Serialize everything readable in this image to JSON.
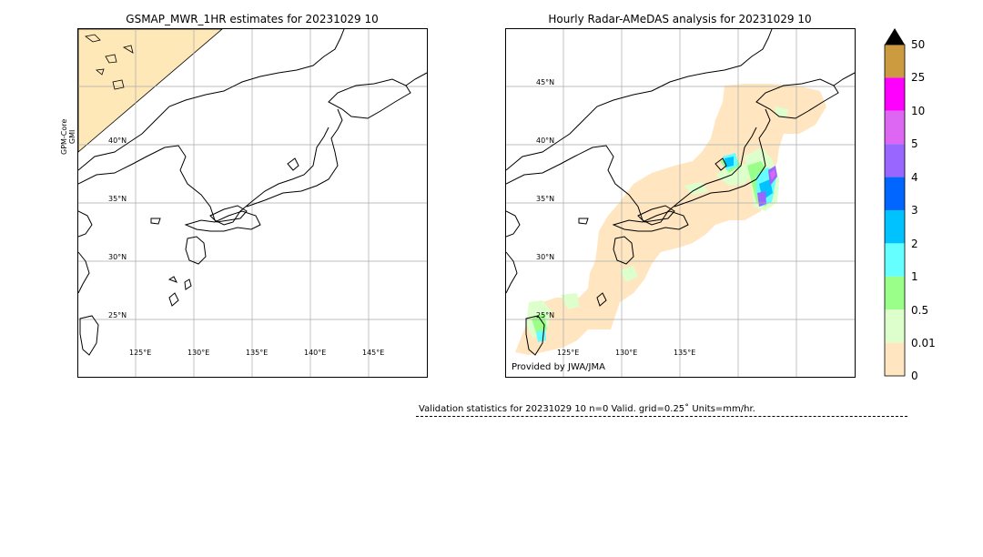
{
  "left_panel": {
    "title": "GSMAP_MWR_1HR estimates for 20231029 10",
    "satellite_label_line1": "GPM-Core",
    "satellite_label_line2": "GMI",
    "lat_labels": [
      "40°N",
      "35°N",
      "30°N",
      "25°N"
    ],
    "lon_labels": [
      "125°E",
      "130°E",
      "135°E",
      "140°E",
      "145°E"
    ]
  },
  "right_panel": {
    "title": "Hourly Radar-AMeDAS analysis for 20231029 10",
    "lat_labels": [
      "45°N",
      "40°N",
      "35°N",
      "30°N",
      "25°N"
    ],
    "lon_labels": [
      "125°E",
      "130°E",
      "135°E"
    ],
    "credit": "Provided by JWA/JMA"
  },
  "colorbar": {
    "ticks": [
      "50",
      "25",
      "10",
      "5",
      "4",
      "3",
      "2",
      "1",
      "0.5",
      "0.01",
      "0"
    ],
    "colors": [
      "#cc9a3f",
      "#ff00ff",
      "#dd66f2",
      "#9966ff",
      "#0066ff",
      "#00c2ff",
      "#66ffff",
      "#99ff88",
      "#ddffcc",
      "#ffe6c0"
    ],
    "extend_color": "#000000"
  },
  "stats": {
    "text": "Validation statistics for 20231029 10  n=0 Valid. grid=0.25˚ Units=mm/hr."
  },
  "colors": {
    "land_outline": "#000000",
    "no_data_fill": "#ffe8b8",
    "gridline": "#aaaaaa"
  }
}
